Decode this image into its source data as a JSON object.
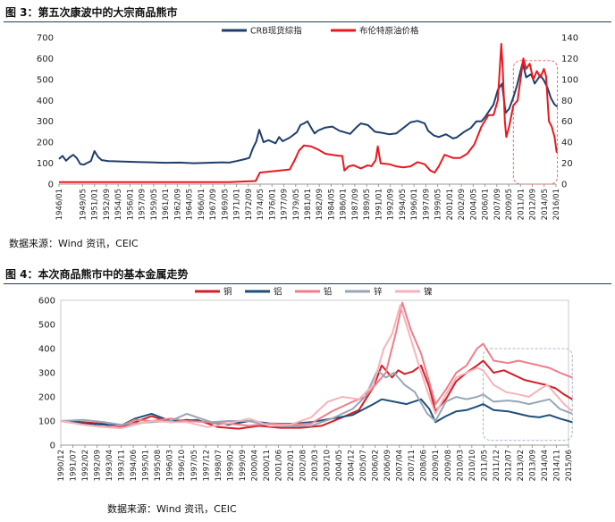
{
  "figures": [
    {
      "title": "图 3：第五次康波中的大宗商品熊市",
      "source": {
        "label": "数据来源：",
        "names": "Wind 资讯，CEIC"
      }
    },
    {
      "title": "图 4：本次商品熊市中的基本金属走势",
      "source": {
        "label": "数据来源：",
        "names": "Wind 资讯，CEIC"
      }
    }
  ],
  "chart_data": [
    {
      "type": "line",
      "title": "",
      "xlabel": "",
      "ylabel": "",
      "ylim": [
        0,
        700
      ],
      "y2lim": [
        0,
        140
      ],
      "yticks": [
        0,
        100,
        200,
        300,
        400,
        500,
        600,
        700
      ],
      "y2ticks": [
        0,
        20,
        40,
        60,
        80,
        100,
        120,
        140
      ],
      "x_tick_labels": [
        "1946/01",
        "1949/05",
        "1951/01",
        "1952/09",
        "1954/05",
        "1956/01",
        "1957/09",
        "1959/05",
        "1961/01",
        "1962/09",
        "1964/05",
        "1966/01",
        "1967/09",
        "1969/05",
        "1971/01",
        "1972/09",
        "1974/05",
        "1976/01",
        "1977/09",
        "1979/05",
        "1981/01",
        "1982/09",
        "1984/05",
        "1986/01",
        "1987/09",
        "1989/05",
        "1991/01",
        "1992/09",
        "1994/05",
        "1996/01",
        "1997/09",
        "1999/05",
        "2001/01",
        "2002/09",
        "2004/05",
        "2006/01",
        "2007/09",
        "2009/05",
        "2011/01",
        "2012/09",
        "2014/05",
        "2016/01"
      ],
      "legend_position": "top",
      "grid": false,
      "highlight": {
        "x": [
          2010.0,
          2016.2
        ],
        "axis": "y",
        "range": [
          0,
          590
        ],
        "style": "dashed",
        "color": "#e07070"
      },
      "series": [
        {
          "name": "CRB现货综指",
          "axis": "left",
          "color": "#1f3f6b",
          "x": [
            1946.0,
            1946.5,
            1947.0,
            1947.5,
            1948.0,
            1948.5,
            1949.0,
            1949.5,
            1950.0,
            1950.5,
            1951.0,
            1951.5,
            1952.0,
            1953.0,
            1955.0,
            1957.0,
            1959.0,
            1961.0,
            1963.0,
            1965.0,
            1967.0,
            1969.0,
            1970.0,
            1971.0,
            1972.0,
            1972.8,
            1973.3,
            1973.8,
            1974.2,
            1974.8,
            1975.5,
            1976.5,
            1977.0,
            1977.5,
            1978.5,
            1979.5,
            1980.0,
            1980.5,
            1981.0,
            1981.5,
            1982.0,
            1982.5,
            1983.5,
            1984.5,
            1985.5,
            1986.0,
            1987.0,
            1988.0,
            1988.5,
            1989.5,
            1990.5,
            1991.5,
            1992.5,
            1993.5,
            1994.5,
            1995.5,
            1996.5,
            1997.5,
            1998.0,
            1998.8,
            1999.5,
            2000.5,
            2001.5,
            2002.0,
            2003.0,
            2004.0,
            2004.8,
            2005.5,
            2006.0,
            2006.5,
            2007.2,
            2007.8,
            2008.4,
            2008.9,
            2009.4,
            2010.0,
            2010.5,
            2011.0,
            2011.3,
            2011.8,
            2012.5,
            2013.0,
            2013.8,
            2014.3,
            2014.8,
            2015.3,
            2015.8,
            2016.2
          ],
          "values": [
            120,
            135,
            112,
            128,
            140,
            124,
            96,
            93,
            102,
            110,
            158,
            130,
            115,
            110,
            108,
            106,
            104,
            102,
            103,
            100,
            102,
            104,
            103,
            110,
            118,
            125,
            170,
            205,
            260,
            200,
            210,
            195,
            225,
            205,
            222,
            248,
            282,
            290,
            300,
            270,
            242,
            256,
            270,
            275,
            255,
            250,
            240,
            275,
            290,
            282,
            250,
            245,
            238,
            242,
            268,
            295,
            302,
            290,
            255,
            232,
            225,
            238,
            218,
            223,
            248,
            268,
            300,
            300,
            320,
            345,
            380,
            450,
            480,
            340,
            360,
            415,
            470,
            540,
            580,
            510,
            525,
            480,
            520,
            495,
            460,
            410,
            380,
            370
          ],
          "labels_on_chart": []
        },
        {
          "name": "布伦特原油价格",
          "axis": "right",
          "color": "#e8191f",
          "x": [
            1946.0,
            1960.0,
            1970.0,
            1973.7,
            1974.3,
            1978.5,
            1979.2,
            1979.8,
            1980.5,
            1981.5,
            1982.5,
            1983.5,
            1984.5,
            1985.5,
            1985.9,
            1986.2,
            1986.8,
            1987.5,
            1988.5,
            1989.5,
            1990.0,
            1990.6,
            1990.9,
            1991.3,
            1992.5,
            1993.5,
            1994.5,
            1995.5,
            1996.5,
            1997.5,
            1998.3,
            1998.9,
            1999.5,
            2000.3,
            2001.5,
            2002.5,
            2003.5,
            2004.5,
            2005.5,
            2006.5,
            2007.2,
            2007.8,
            2008.3,
            2008.5,
            2008.8,
            2009.0,
            2009.4,
            2010.0,
            2010.6,
            2011.1,
            2011.4,
            2011.8,
            2012.3,
            2012.8,
            2013.3,
            2013.8,
            2014.3,
            2014.6,
            2015.0,
            2015.4,
            2015.8,
            2016.1
          ],
          "values": [
            2,
            2,
            2,
            3,
            11,
            14,
            23,
            32,
            37,
            36,
            33,
            29,
            28,
            27,
            27,
            13,
            17,
            18,
            15,
            18,
            17,
            23,
            36,
            20,
            19,
            17,
            16,
            17,
            21,
            19,
            13,
            11,
            17,
            28,
            25,
            25,
            29,
            38,
            55,
            66,
            66,
            80,
            134,
            110,
            60,
            45,
            55,
            75,
            80,
            105,
            120,
            110,
            115,
            100,
            108,
            102,
            110,
            103,
            60,
            55,
            45,
            30
          ],
          "labels_on_chart": []
        }
      ]
    },
    {
      "type": "line",
      "title": "",
      "xlabel": "",
      "ylabel": "",
      "ylim": [
        0,
        600
      ],
      "yticks": [
        0,
        100,
        200,
        300,
        400,
        500,
        600
      ],
      "x_tick_labels": [
        "1990/12",
        "1991/07",
        "1992/02",
        "1992/09",
        "1993/04",
        "1993/11",
        "1994/06",
        "1995/01",
        "1995/08",
        "1996/03",
        "1996/10",
        "1997/05",
        "1997/12",
        "1998/07",
        "1999/02",
        "1999/09",
        "2000/04",
        "2000/11",
        "2001/06",
        "2002/01",
        "2002/08",
        "2003/03",
        "2003/10",
        "2004/05",
        "2004/12",
        "2005/07",
        "2006/02",
        "2006/09",
        "2007/04",
        "2007/11",
        "2008/06",
        "2009/01",
        "2009/08",
        "2010/03",
        "2010/10",
        "2011/05",
        "2011/12",
        "2012/07",
        "2013/02",
        "2013/09",
        "2014/04",
        "2014/11",
        "2015/06"
      ],
      "legend_position": "top",
      "grid": false,
      "highlight": {
        "x": [
          2011.3,
          2015.6
        ],
        "axis": "y",
        "range": [
          20,
          400
        ],
        "style": "dashed",
        "color": "#a8b4cc"
      },
      "series": [
        {
          "name": "铜",
          "color": "#d21f26",
          "x": [
            1990.9,
            1992,
            1993,
            1993.8,
            1994.5,
            1995.3,
            1996.2,
            1996.8,
            1997.5,
            1998.5,
            1999.5,
            2000.5,
            2001.5,
            2002.5,
            2003.5,
            2004.5,
            2005.3,
            2006.0,
            2006.4,
            2006.9,
            2007.2,
            2007.5,
            2007.9,
            2008.3,
            2008.7,
            2009.0,
            2009.5,
            2010.0,
            2010.5,
            2011.0,
            2011.3,
            2011.8,
            2012.3,
            2012.8,
            2013.3,
            2013.8,
            2014.3,
            2014.8,
            2015.2,
            2015.6
          ],
          "values": [
            100,
            95,
            88,
            72,
            95,
            120,
            95,
            100,
            105,
            75,
            68,
            80,
            72,
            72,
            80,
            115,
            145,
            240,
            330,
            280,
            310,
            295,
            305,
            330,
            240,
            140,
            190,
            265,
            300,
            330,
            350,
            300,
            310,
            290,
            270,
            260,
            250,
            235,
            210,
            190
          ]
        },
        {
          "name": "铝",
          "color": "#1d4f7a",
          "x": [
            1990.9,
            1992,
            1993,
            1993.8,
            1994.5,
            1995.3,
            1996.2,
            1997,
            1998,
            1999,
            2000,
            2001,
            2002,
            2003,
            2004,
            2005,
            2006,
            2006.4,
            2007,
            2007.6,
            2008.3,
            2008.7,
            2009.0,
            2009.5,
            2010.0,
            2010.5,
            2011.0,
            2011.3,
            2011.8,
            2012.5,
            2013.0,
            2013.5,
            2014.0,
            2014.5,
            2015.0,
            2015.6
          ],
          "values": [
            100,
            90,
            85,
            80,
            110,
            130,
            100,
            105,
            95,
            85,
            100,
            90,
            88,
            95,
            110,
            125,
            170,
            190,
            180,
            170,
            190,
            150,
            95,
            120,
            140,
            145,
            160,
            170,
            145,
            140,
            130,
            120,
            115,
            125,
            110,
            95
          ]
        },
        {
          "name": "铅",
          "color": "#f07d8a",
          "x": [
            1990.9,
            1992,
            1993,
            1993.8,
            1994.5,
            1995.3,
            1996.2,
            1997,
            1998,
            1999,
            2000,
            2001,
            2002,
            2003,
            2004,
            2005,
            2005.6,
            2006.2,
            2006.6,
            2007.1,
            2007.4,
            2007.8,
            2008.3,
            2008.7,
            2009.0,
            2009.5,
            2010.0,
            2010.5,
            2011.0,
            2011.3,
            2011.8,
            2012.5,
            2013.0,
            2013.5,
            2014.0,
            2014.5,
            2015.0,
            2015.6
          ],
          "values": [
            100,
            85,
            75,
            80,
            105,
            100,
            110,
            100,
            95,
            90,
            80,
            90,
            85,
            90,
            140,
            180,
            200,
            260,
            300,
            470,
            590,
            480,
            380,
            260,
            170,
            230,
            300,
            330,
            400,
            420,
            350,
            340,
            350,
            340,
            330,
            320,
            300,
            280
          ]
        },
        {
          "name": "锌",
          "color": "#98a6b6",
          "x": [
            1990.9,
            1992,
            1993,
            1993.8,
            1994.5,
            1995.3,
            1996.2,
            1997,
            1997.5,
            1998.2,
            1999,
            2000,
            2001,
            2002,
            2003,
            2004,
            2005,
            2005.6,
            2006.2,
            2006.6,
            2007.0,
            2007.5,
            2008.0,
            2008.6,
            2009.0,
            2009.5,
            2010.0,
            2010.5,
            2011.0,
            2011.3,
            2011.8,
            2012.5,
            2013.0,
            2013.5,
            2014.0,
            2014.5,
            2015.0,
            2015.6
          ],
          "values": [
            100,
            105,
            95,
            85,
            90,
            95,
            100,
            130,
            115,
            95,
            100,
            100,
            80,
            78,
            80,
            110,
            150,
            200,
            310,
            280,
            300,
            250,
            220,
            130,
            100,
            180,
            200,
            190,
            200,
            210,
            180,
            185,
            180,
            170,
            180,
            190,
            150,
            130
          ]
        },
        {
          "name": "镍",
          "color": "#f7b3bb",
          "x": [
            1990.9,
            1992,
            1993,
            1993.8,
            1994.5,
            1995.3,
            1996.2,
            1997,
            1998,
            1999,
            2000,
            2001,
            2002,
            2003,
            2003.8,
            2004.5,
            2005.3,
            2006.0,
            2006.5,
            2006.9,
            2007.3,
            2007.7,
            2008.2,
            2008.7,
            2009.0,
            2009.5,
            2010.0,
            2010.5,
            2011.0,
            2011.3,
            2011.8,
            2012.4,
            2013.0,
            2013.5,
            2014.0,
            2014.4,
            2014.8,
            2015.2,
            2015.6
          ],
          "values": [
            100,
            85,
            75,
            70,
            85,
            100,
            95,
            95,
            75,
            90,
            110,
            80,
            85,
            115,
            180,
            200,
            190,
            250,
            400,
            460,
            580,
            470,
            330,
            200,
            130,
            210,
            280,
            300,
            320,
            310,
            250,
            220,
            210,
            200,
            230,
            250,
            210,
            170,
            140
          ]
        }
      ]
    }
  ]
}
